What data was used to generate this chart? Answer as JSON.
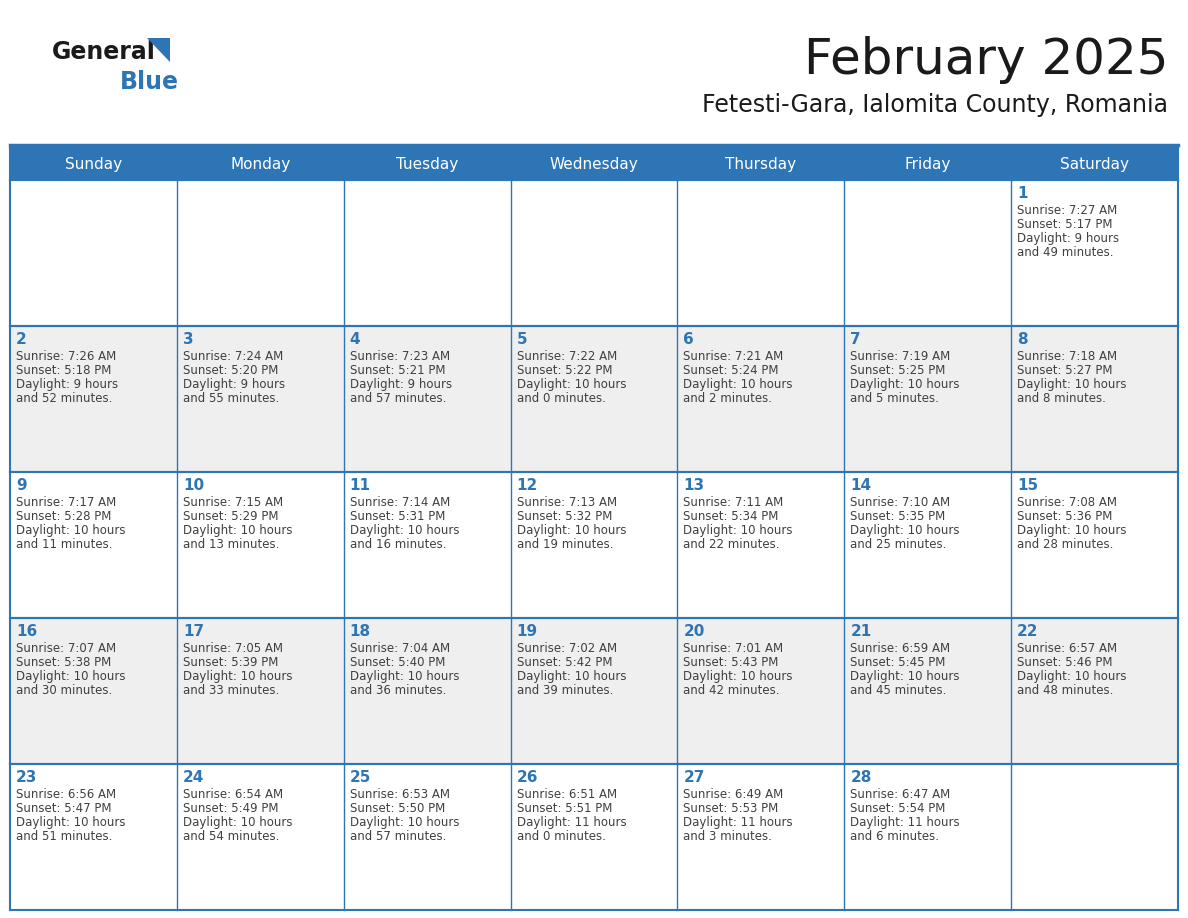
{
  "title": "February 2025",
  "subtitle": "Fetesti-Gara, Ialomita County, Romania",
  "header_bg": "#2E75B6",
  "header_text_color": "#FFFFFF",
  "cell_bg_odd": "#FFFFFF",
  "cell_bg_even": "#EFEFEF",
  "day_number_color": "#2E75B6",
  "text_color": "#404040",
  "border_color": "#2E75B6",
  "days_of_week": [
    "Sunday",
    "Monday",
    "Tuesday",
    "Wednesday",
    "Thursday",
    "Friday",
    "Saturday"
  ],
  "weeks": [
    [
      {
        "day": null,
        "sunrise": null,
        "sunset": null,
        "daylight": null
      },
      {
        "day": null,
        "sunrise": null,
        "sunset": null,
        "daylight": null
      },
      {
        "day": null,
        "sunrise": null,
        "sunset": null,
        "daylight": null
      },
      {
        "day": null,
        "sunrise": null,
        "sunset": null,
        "daylight": null
      },
      {
        "day": null,
        "sunrise": null,
        "sunset": null,
        "daylight": null
      },
      {
        "day": null,
        "sunrise": null,
        "sunset": null,
        "daylight": null
      },
      {
        "day": 1,
        "sunrise": "7:27 AM",
        "sunset": "5:17 PM",
        "daylight": "9 hours and 49 minutes."
      }
    ],
    [
      {
        "day": 2,
        "sunrise": "7:26 AM",
        "sunset": "5:18 PM",
        "daylight": "9 hours and 52 minutes."
      },
      {
        "day": 3,
        "sunrise": "7:24 AM",
        "sunset": "5:20 PM",
        "daylight": "9 hours and 55 minutes."
      },
      {
        "day": 4,
        "sunrise": "7:23 AM",
        "sunset": "5:21 PM",
        "daylight": "9 hours and 57 minutes."
      },
      {
        "day": 5,
        "sunrise": "7:22 AM",
        "sunset": "5:22 PM",
        "daylight": "10 hours and 0 minutes."
      },
      {
        "day": 6,
        "sunrise": "7:21 AM",
        "sunset": "5:24 PM",
        "daylight": "10 hours and 2 minutes."
      },
      {
        "day": 7,
        "sunrise": "7:19 AM",
        "sunset": "5:25 PM",
        "daylight": "10 hours and 5 minutes."
      },
      {
        "day": 8,
        "sunrise": "7:18 AM",
        "sunset": "5:27 PM",
        "daylight": "10 hours and 8 minutes."
      }
    ],
    [
      {
        "day": 9,
        "sunrise": "7:17 AM",
        "sunset": "5:28 PM",
        "daylight": "10 hours and 11 minutes."
      },
      {
        "day": 10,
        "sunrise": "7:15 AM",
        "sunset": "5:29 PM",
        "daylight": "10 hours and 13 minutes."
      },
      {
        "day": 11,
        "sunrise": "7:14 AM",
        "sunset": "5:31 PM",
        "daylight": "10 hours and 16 minutes."
      },
      {
        "day": 12,
        "sunrise": "7:13 AM",
        "sunset": "5:32 PM",
        "daylight": "10 hours and 19 minutes."
      },
      {
        "day": 13,
        "sunrise": "7:11 AM",
        "sunset": "5:34 PM",
        "daylight": "10 hours and 22 minutes."
      },
      {
        "day": 14,
        "sunrise": "7:10 AM",
        "sunset": "5:35 PM",
        "daylight": "10 hours and 25 minutes."
      },
      {
        "day": 15,
        "sunrise": "7:08 AM",
        "sunset": "5:36 PM",
        "daylight": "10 hours and 28 minutes."
      }
    ],
    [
      {
        "day": 16,
        "sunrise": "7:07 AM",
        "sunset": "5:38 PM",
        "daylight": "10 hours and 30 minutes."
      },
      {
        "day": 17,
        "sunrise": "7:05 AM",
        "sunset": "5:39 PM",
        "daylight": "10 hours and 33 minutes."
      },
      {
        "day": 18,
        "sunrise": "7:04 AM",
        "sunset": "5:40 PM",
        "daylight": "10 hours and 36 minutes."
      },
      {
        "day": 19,
        "sunrise": "7:02 AM",
        "sunset": "5:42 PM",
        "daylight": "10 hours and 39 minutes."
      },
      {
        "day": 20,
        "sunrise": "7:01 AM",
        "sunset": "5:43 PM",
        "daylight": "10 hours and 42 minutes."
      },
      {
        "day": 21,
        "sunrise": "6:59 AM",
        "sunset": "5:45 PM",
        "daylight": "10 hours and 45 minutes."
      },
      {
        "day": 22,
        "sunrise": "6:57 AM",
        "sunset": "5:46 PM",
        "daylight": "10 hours and 48 minutes."
      }
    ],
    [
      {
        "day": 23,
        "sunrise": "6:56 AM",
        "sunset": "5:47 PM",
        "daylight": "10 hours and 51 minutes."
      },
      {
        "day": 24,
        "sunrise": "6:54 AM",
        "sunset": "5:49 PM",
        "daylight": "10 hours and 54 minutes."
      },
      {
        "day": 25,
        "sunrise": "6:53 AM",
        "sunset": "5:50 PM",
        "daylight": "10 hours and 57 minutes."
      },
      {
        "day": 26,
        "sunrise": "6:51 AM",
        "sunset": "5:51 PM",
        "daylight": "11 hours and 0 minutes."
      },
      {
        "day": 27,
        "sunrise": "6:49 AM",
        "sunset": "5:53 PM",
        "daylight": "11 hours and 3 minutes."
      },
      {
        "day": 28,
        "sunrise": "6:47 AM",
        "sunset": "5:54 PM",
        "daylight": "11 hours and 6 minutes."
      },
      {
        "day": null,
        "sunrise": null,
        "sunset": null,
        "daylight": null
      }
    ]
  ],
  "logo_text1": "General",
  "logo_text2": "Blue",
  "logo_text1_color": "#1a1a1a",
  "logo_text2_color": "#2E75B6",
  "logo_triangle_color": "#2E75B6",
  "title_fontsize": 36,
  "subtitle_fontsize": 17,
  "dow_fontsize": 11,
  "day_num_fontsize": 11,
  "cell_text_fontsize": 8.5
}
